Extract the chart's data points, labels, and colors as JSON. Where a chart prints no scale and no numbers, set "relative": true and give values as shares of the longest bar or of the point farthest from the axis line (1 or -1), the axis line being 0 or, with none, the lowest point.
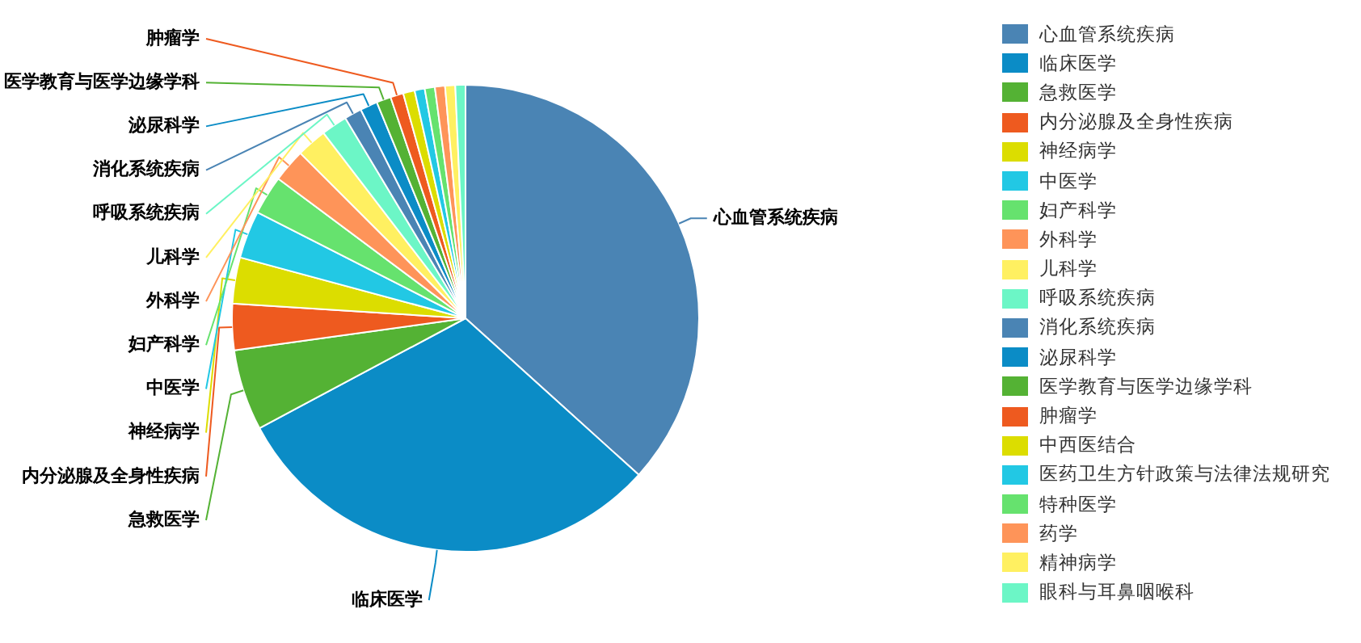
{
  "chart_data": {
    "type": "pie",
    "relative": true,
    "legend": "right",
    "categories": [
      "心血管系统疾病",
      "临床医学",
      "急救医学",
      "内分泌腺及全身性疾病",
      "神经病学",
      "中医学",
      "妇产科学",
      "外科学",
      "儿科学",
      "呼吸系统疾病",
      "消化系统疾病",
      "泌尿科学",
      "医学教育与医学边缘学科",
      "肿瘤学",
      "中西医结合",
      "医药卫生方针政策与法律法规研究",
      "特种医学",
      "药学",
      "精神病学",
      "眼科与耳鼻咽喉科"
    ],
    "values": [
      36.7,
      30.5,
      5.6,
      3.2,
      3.2,
      3.3,
      2.7,
      2.3,
      2.1,
      1.8,
      1.2,
      1.2,
      1.0,
      0.9,
      0.8,
      0.7,
      0.7,
      0.7,
      0.7,
      0.7
    ],
    "colors": [
      "#4a84b4",
      "#0b8cc6",
      "#54b234",
      "#ee5a1f",
      "#dcdd00",
      "#22c8e4",
      "#66e26e",
      "#fe9459",
      "#fff061",
      "#6cf6c6",
      "#4a84b4",
      "#0b8cc6",
      "#54b234",
      "#ee5a1f",
      "#dcdd00",
      "#22c8e4",
      "#66e26e",
      "#fe9459",
      "#fff061",
      "#6cf6c6"
    ]
  }
}
